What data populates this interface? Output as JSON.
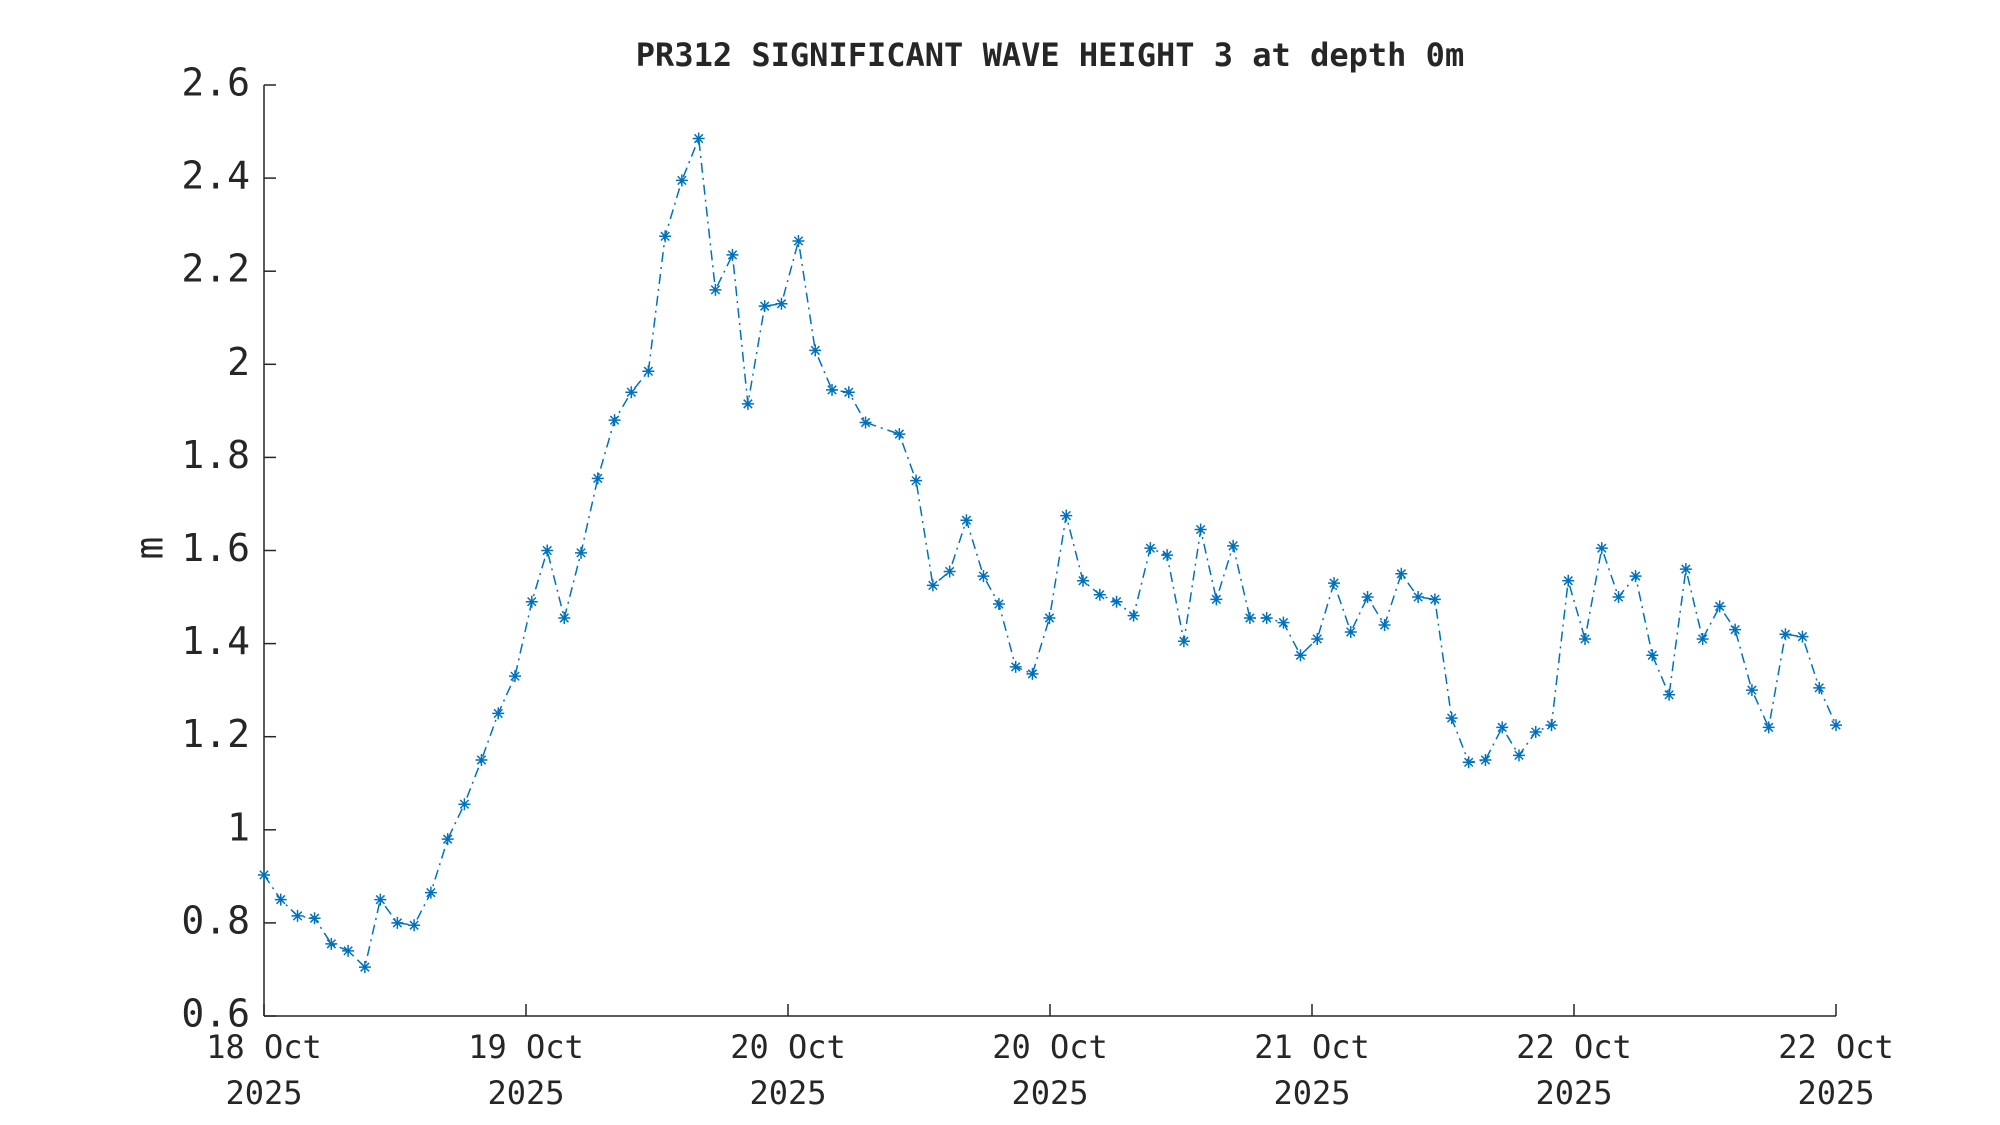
{
  "chart_data": {
    "type": "line",
    "title": "PR312 SIGNIFICANT WAVE HEIGHT 3 at depth 0m",
    "ylabel": "m",
    "xlim": [
      0,
      6
    ],
    "xticks": [
      {
        "value": 0,
        "label": "18 Oct 2025"
      },
      {
        "value": 1,
        "label": "19 Oct 2025"
      },
      {
        "value": 2,
        "label": "20 Oct 2025"
      },
      {
        "value": 3,
        "label": "20 Oct 2025"
      },
      {
        "value": 4,
        "label": "21 Oct 2025"
      },
      {
        "value": 5,
        "label": "22 Oct 2025"
      },
      {
        "value": 6,
        "label": "22 Oct 2025"
      }
    ],
    "ylim": [
      0.6,
      2.6
    ],
    "yticks": [
      0.6,
      0.8,
      1,
      1.2,
      1.4,
      1.6,
      1.8,
      2,
      2.2,
      2.4,
      2.6
    ],
    "series": [
      {
        "color": "#0072bd",
        "x": [
          0,
          0.064,
          0.128,
          0.193,
          0.257,
          0.321,
          0.385,
          0.444,
          0.509,
          0.573,
          0.637,
          0.701,
          0.765,
          0.83,
          0.894,
          0.958,
          1.022,
          1.081,
          1.146,
          1.21,
          1.274,
          1.338,
          1.402,
          1.467,
          1.531,
          1.595,
          1.659,
          1.723,
          1.788,
          1.847,
          1.911,
          1.975,
          2.04,
          2.104,
          2.168,
          2.232,
          2.296,
          2.425,
          2.489,
          2.553,
          2.617,
          2.681,
          2.746,
          2.805,
          2.869,
          2.933,
          2.998,
          3.062,
          3.126,
          3.19,
          3.254,
          3.319,
          3.383,
          3.447,
          3.511,
          3.575,
          3.635,
          3.699,
          3.763,
          3.827,
          3.891,
          3.956,
          4.02,
          4.084,
          4.148,
          4.212,
          4.277,
          4.341,
          4.405,
          4.469,
          4.533,
          4.598,
          4.662,
          4.726,
          4.79,
          4.854,
          4.914,
          4.978,
          5.042,
          5.106,
          5.17,
          5.235,
          5.299,
          5.363,
          5.427,
          5.491,
          5.556,
          5.615,
          5.679,
          5.743,
          5.807,
          5.872,
          5.936,
          6
        ],
        "values": [
          0.903,
          0.85,
          0.815,
          0.81,
          0.755,
          0.74,
          0.705,
          0.85,
          0.8,
          0.795,
          0.865,
          0.98,
          1.055,
          1.15,
          1.25,
          1.33,
          1.49,
          1.6,
          1.455,
          1.595,
          1.755,
          1.88,
          1.94,
          1.985,
          2.275,
          2.395,
          2.485,
          2.16,
          2.235,
          1.915,
          2.125,
          2.13,
          2.265,
          2.03,
          1.945,
          1.94,
          1.875,
          1.85,
          1.75,
          1.525,
          1.555,
          1.665,
          1.545,
          1.485,
          1.35,
          1.335,
          1.455,
          1.675,
          1.535,
          1.505,
          1.49,
          1.46,
          1.605,
          1.59,
          1.405,
          1.645,
          1.495,
          1.61,
          1.455,
          1.455,
          1.445,
          1.375,
          1.41,
          1.53,
          1.425,
          1.5,
          1.44,
          1.55,
          1.5,
          1.495,
          1.24,
          1.145,
          1.15,
          1.22,
          1.16,
          1.21,
          1.225,
          1.535,
          1.41,
          1.605,
          1.5,
          1.545,
          1.375,
          1.29,
          1.56,
          1.41,
          1.48,
          1.43,
          1.3,
          1.22,
          1.42,
          1.415,
          1.305,
          1.225
        ]
      }
    ]
  }
}
